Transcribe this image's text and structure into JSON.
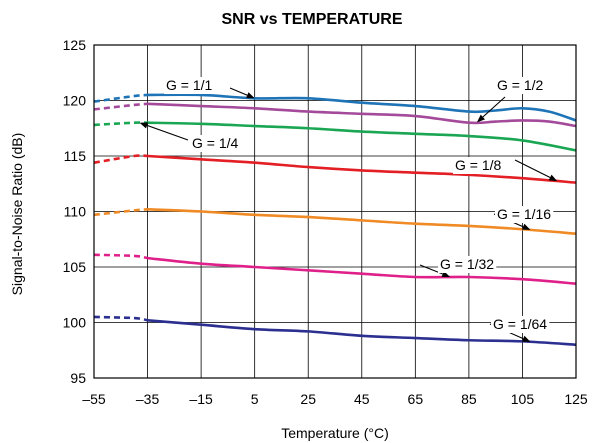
{
  "chart_data": {
    "type": "line",
    "title": "SNR vs TEMPERATURE",
    "xlabel": "Temperature (°C)",
    "ylabel": "Signal-to-Noise Ratio (dB)",
    "xlim": [
      -55,
      125
    ],
    "ylim": [
      95,
      125
    ],
    "xticks": [
      -55,
      -35,
      -15,
      5,
      25,
      45,
      65,
      85,
      105,
      125
    ],
    "yticks": [
      95,
      100,
      105,
      110,
      115,
      120,
      125
    ],
    "grid": true,
    "legend": "none",
    "series": [
      {
        "name": "G = 1/1",
        "color": "#1e74b6",
        "x": [
          -55,
          -40,
          -35,
          -15,
          5,
          25,
          45,
          65,
          85,
          95,
          105,
          115,
          125
        ],
        "y": [
          119.9,
          120.4,
          120.5,
          120.5,
          120.2,
          120.2,
          119.8,
          119.5,
          119.0,
          119.1,
          119.3,
          119.0,
          118.2
        ]
      },
      {
        "name": "G = 1/2",
        "color": "#a44a9a",
        "x": [
          -55,
          -40,
          -35,
          -15,
          5,
          25,
          45,
          65,
          85,
          95,
          105,
          115,
          125
        ],
        "y": [
          119.2,
          119.6,
          119.7,
          119.5,
          119.3,
          119.0,
          118.8,
          118.6,
          118.0,
          118.1,
          118.2,
          118.1,
          117.7
        ]
      },
      {
        "name": "G = 1/4",
        "color": "#1aa653",
        "x": [
          -55,
          -40,
          -35,
          -15,
          5,
          25,
          45,
          65,
          85,
          105,
          125
        ],
        "y": [
          117.8,
          118.0,
          118.0,
          117.9,
          117.7,
          117.5,
          117.2,
          117.0,
          116.8,
          116.4,
          115.5
        ]
      },
      {
        "name": "G = 1/8",
        "color": "#e31e24",
        "x": [
          -55,
          -40,
          -35,
          -15,
          5,
          25,
          45,
          65,
          85,
          105,
          125
        ],
        "y": [
          114.4,
          115.0,
          115.0,
          114.7,
          114.4,
          114.0,
          113.7,
          113.5,
          113.3,
          113.0,
          112.6
        ]
      },
      {
        "name": "G = 1/16",
        "color": "#f08a24",
        "x": [
          -55,
          -40,
          -35,
          -15,
          5,
          25,
          45,
          65,
          85,
          105,
          125
        ],
        "y": [
          109.7,
          110.1,
          110.2,
          110.0,
          109.7,
          109.5,
          109.2,
          108.9,
          108.7,
          108.4,
          108.0
        ]
      },
      {
        "name": "G = 1/32",
        "color": "#e0208a",
        "x": [
          -55,
          -40,
          -35,
          -15,
          5,
          25,
          45,
          65,
          85,
          105,
          125
        ],
        "y": [
          106.1,
          106.0,
          105.8,
          105.3,
          105.0,
          104.7,
          104.4,
          104.1,
          104.1,
          103.9,
          103.5
        ]
      },
      {
        "name": "G = 1/64",
        "color": "#2b2f8f",
        "x": [
          -55,
          -40,
          -35,
          -15,
          5,
          25,
          45,
          65,
          85,
          105,
          125
        ],
        "y": [
          100.5,
          100.4,
          100.2,
          99.8,
          99.4,
          99.2,
          98.8,
          98.6,
          98.4,
          98.3,
          98.0
        ]
      }
    ],
    "dashed_below_x": -35,
    "annotations": [
      {
        "text": "G = 1/1",
        "series": 0,
        "point_to_x": 5
      },
      {
        "text": "G = 1/2",
        "series": 1,
        "point_to_x": 88
      },
      {
        "text": "G = 1/4",
        "series": 2,
        "point_to_x": -38
      },
      {
        "text": "G = 1/8",
        "series": 3,
        "point_to_x": 118
      },
      {
        "text": "G = 1/16",
        "series": 4,
        "point_to_x": 108
      },
      {
        "text": "G = 1/32",
        "series": 5,
        "point_to_x": 78
      },
      {
        "text": "G = 1/64",
        "series": 6,
        "point_to_x": 108
      }
    ]
  }
}
